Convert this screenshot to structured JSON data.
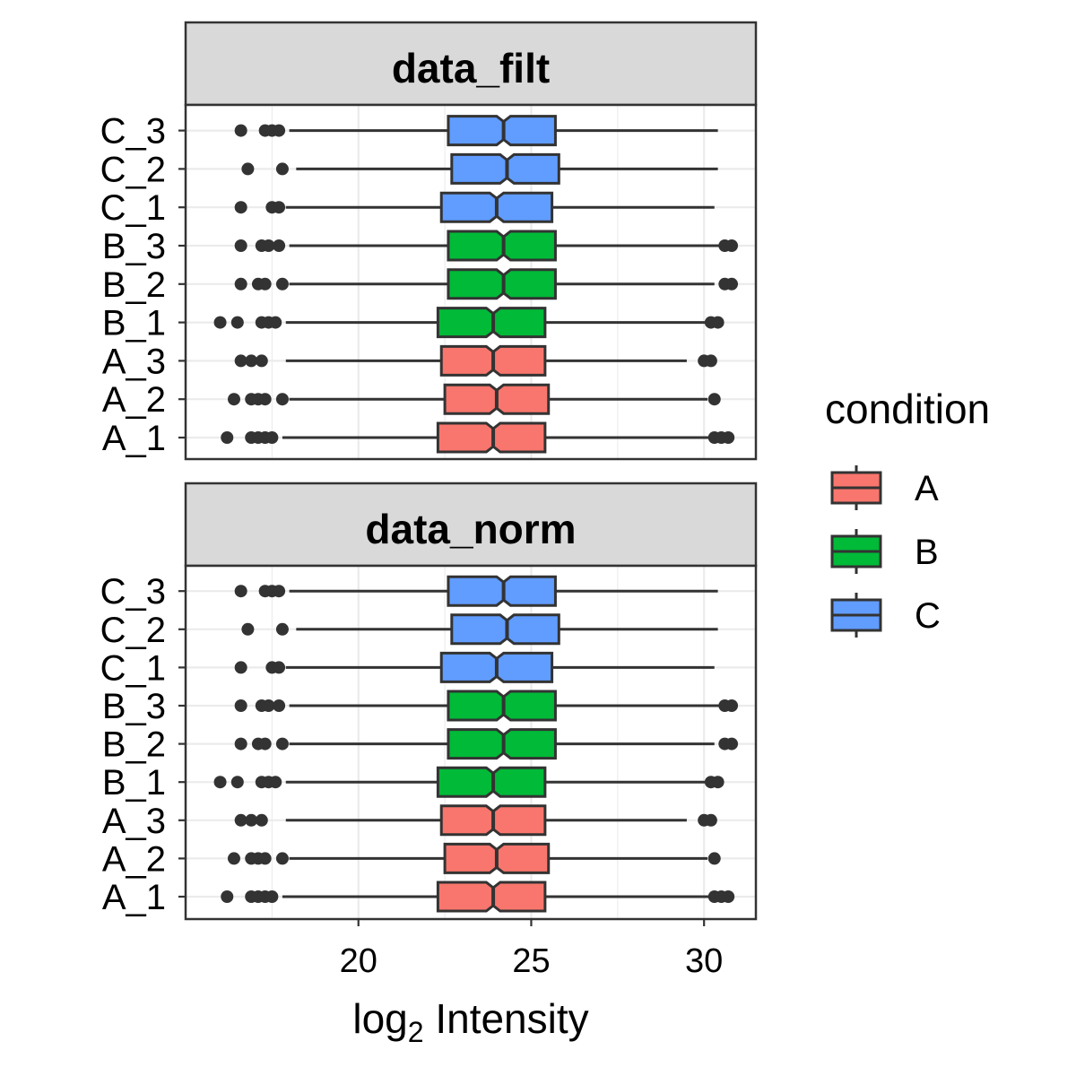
{
  "chart_data": {
    "type": "boxplot",
    "orientation": "horizontal",
    "notched": true,
    "facets": [
      "data_filt",
      "data_norm"
    ],
    "samples": [
      "A_1",
      "A_2",
      "A_3",
      "B_1",
      "B_2",
      "B_3",
      "C_1",
      "C_2",
      "C_3"
    ],
    "x_axis": {
      "label_base": "log",
      "label_sub": "2",
      "label_rest": " Intensity",
      "ticks": [
        20,
        25,
        30
      ],
      "xlim": [
        15,
        31.5
      ],
      "grid": true
    },
    "legend": {
      "title": "condition",
      "placement": "right",
      "entries": [
        {
          "label": "A",
          "color": "#F8766D"
        },
        {
          "label": "B",
          "color": "#00BA38"
        },
        {
          "label": "C",
          "color": "#619CFF"
        }
      ]
    },
    "colors": {
      "A": "#F8766D",
      "B": "#00BA38",
      "C": "#619CFF",
      "strip_bg": "#D9D9D9",
      "outline": "#333333",
      "grid": "#EBEBEB"
    },
    "boxes": [
      {
        "sample": "A_1",
        "condition": "A",
        "whisker_low": 17.8,
        "q1": 22.3,
        "median": 23.9,
        "q3": 25.4,
        "whisker_high": 30.2,
        "notch": [
          23.7,
          24.1
        ],
        "outliers": [
          16.2,
          16.9,
          17.1,
          17.3,
          17.5,
          30.3,
          30.5,
          30.7
        ]
      },
      {
        "sample": "A_2",
        "condition": "A",
        "whisker_low": 18.0,
        "q1": 22.5,
        "median": 24.0,
        "q3": 25.5,
        "whisker_high": 30.1,
        "notch": [
          23.8,
          24.2
        ],
        "outliers": [
          16.4,
          16.9,
          17.1,
          17.3,
          17.8,
          30.3
        ]
      },
      {
        "sample": "A_3",
        "condition": "A",
        "whisker_low": 17.9,
        "q1": 22.4,
        "median": 23.9,
        "q3": 25.4,
        "whisker_high": 29.5,
        "notch": [
          23.7,
          24.1
        ],
        "outliers": [
          16.6,
          16.9,
          17.2,
          30.0,
          30.2
        ]
      },
      {
        "sample": "B_1",
        "condition": "B",
        "whisker_low": 17.9,
        "q1": 22.3,
        "median": 23.9,
        "q3": 25.4,
        "whisker_high": 30.1,
        "notch": [
          23.7,
          24.1
        ],
        "outliers": [
          16.0,
          16.5,
          17.2,
          17.4,
          17.6,
          30.2,
          30.4
        ]
      },
      {
        "sample": "B_2",
        "condition": "B",
        "whisker_low": 18.0,
        "q1": 22.6,
        "median": 24.2,
        "q3": 25.7,
        "whisker_high": 30.3,
        "notch": [
          24.0,
          24.4
        ],
        "outliers": [
          16.6,
          17.1,
          17.3,
          17.8,
          30.6,
          30.8
        ]
      },
      {
        "sample": "B_3",
        "condition": "B",
        "whisker_low": 18.0,
        "q1": 22.6,
        "median": 24.2,
        "q3": 25.7,
        "whisker_high": 30.5,
        "notch": [
          24.0,
          24.4
        ],
        "outliers": [
          16.6,
          17.2,
          17.4,
          17.7,
          30.6,
          30.8
        ]
      },
      {
        "sample": "C_1",
        "condition": "C",
        "whisker_low": 17.9,
        "q1": 22.4,
        "median": 24.0,
        "q3": 25.6,
        "whisker_high": 30.3,
        "notch": [
          23.8,
          24.2
        ],
        "outliers": [
          16.6,
          17.5,
          17.7
        ]
      },
      {
        "sample": "C_2",
        "condition": "C",
        "whisker_low": 18.2,
        "q1": 22.7,
        "median": 24.3,
        "q3": 25.8,
        "whisker_high": 30.4,
        "notch": [
          24.1,
          24.5
        ],
        "outliers": [
          16.8,
          17.8
        ]
      },
      {
        "sample": "C_3",
        "condition": "C",
        "whisker_low": 18.0,
        "q1": 22.6,
        "median": 24.2,
        "q3": 25.7,
        "whisker_high": 30.4,
        "notch": [
          24.0,
          24.4
        ],
        "outliers": [
          16.6,
          17.3,
          17.5,
          17.7
        ]
      }
    ]
  }
}
